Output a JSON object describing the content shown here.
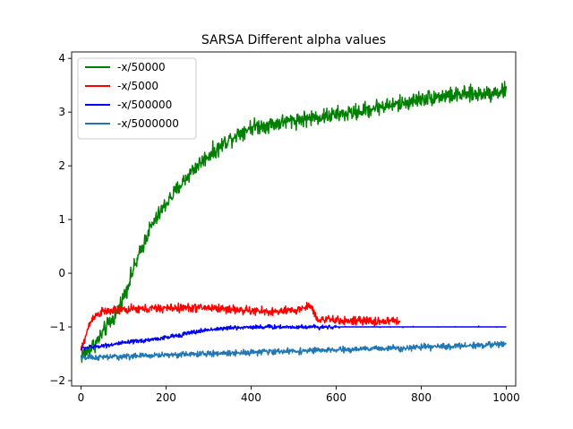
{
  "chart_data": {
    "type": "line",
    "title": "SARSA Different alpha values",
    "xlabel": "",
    "ylabel": "",
    "xlim": [
      -22,
      1022
    ],
    "ylim": [
      -2.1,
      4.12
    ],
    "xticks": [
      0,
      200,
      400,
      600,
      800,
      1000
    ],
    "yticks": [
      -2,
      -1,
      0,
      1,
      2,
      3,
      4
    ],
    "grid": false,
    "legend_position": "top-left",
    "series": [
      {
        "name": "-x/50000",
        "color": "#008000",
        "x_range": [
          0,
          1000
        ],
        "keypoints": [
          [
            0,
            -1.55
          ],
          [
            20,
            -1.42
          ],
          [
            40,
            -1.25
          ],
          [
            60,
            -1.0
          ],
          [
            80,
            -0.8
          ],
          [
            100,
            -0.45
          ],
          [
            120,
            0.0
          ],
          [
            140,
            0.4
          ],
          [
            160,
            0.8
          ],
          [
            180,
            1.05
          ],
          [
            200,
            1.3
          ],
          [
            220,
            1.5
          ],
          [
            240,
            1.7
          ],
          [
            260,
            1.9
          ],
          [
            280,
            2.05
          ],
          [
            300,
            2.2
          ],
          [
            320,
            2.3
          ],
          [
            340,
            2.45
          ],
          [
            360,
            2.55
          ],
          [
            380,
            2.65
          ],
          [
            400,
            2.72
          ],
          [
            450,
            2.78
          ],
          [
            500,
            2.85
          ],
          [
            550,
            2.9
          ],
          [
            600,
            2.95
          ],
          [
            650,
            3.0
          ],
          [
            700,
            3.1
          ],
          [
            750,
            3.15
          ],
          [
            800,
            3.25
          ],
          [
            850,
            3.3
          ],
          [
            900,
            3.32
          ],
          [
            950,
            3.35
          ],
          [
            1000,
            3.4
          ]
        ],
        "noise": 0.22
      },
      {
        "name": "-x/5000",
        "color": "#ff0000",
        "x_range": [
          0,
          750
        ],
        "keypoints": [
          [
            0,
            -1.45
          ],
          [
            10,
            -1.2
          ],
          [
            20,
            -0.95
          ],
          [
            30,
            -0.8
          ],
          [
            50,
            -0.72
          ],
          [
            100,
            -0.68
          ],
          [
            200,
            -0.65
          ],
          [
            300,
            -0.64
          ],
          [
            400,
            -0.7
          ],
          [
            450,
            -0.72
          ],
          [
            500,
            -0.7
          ],
          [
            540,
            -0.6
          ],
          [
            555,
            -0.85
          ],
          [
            600,
            -0.88
          ],
          [
            700,
            -0.9
          ],
          [
            750,
            -0.88
          ]
        ],
        "noise": 0.12
      },
      {
        "name": "-x/500000",
        "color": "#0000ff",
        "x_range": [
          0,
          1000
        ],
        "keypoints": [
          [
            0,
            -1.4
          ],
          [
            50,
            -1.35
          ],
          [
            100,
            -1.3
          ],
          [
            150,
            -1.25
          ],
          [
            200,
            -1.2
          ],
          [
            250,
            -1.12
          ],
          [
            300,
            -1.05
          ],
          [
            350,
            -1.02
          ],
          [
            400,
            -1.0
          ],
          [
            500,
            -1.0
          ],
          [
            600,
            -1.0
          ],
          [
            1000,
            -1.0
          ]
        ],
        "noise": 0.06,
        "flat_after": 600
      },
      {
        "name": "-x/5000000",
        "color": "#1f77b4",
        "x_range": [
          0,
          1000
        ],
        "keypoints": [
          [
            0,
            -1.58
          ],
          [
            100,
            -1.55
          ],
          [
            200,
            -1.52
          ],
          [
            300,
            -1.5
          ],
          [
            400,
            -1.47
          ],
          [
            500,
            -1.45
          ],
          [
            600,
            -1.43
          ],
          [
            700,
            -1.4
          ],
          [
            800,
            -1.38
          ],
          [
            900,
            -1.35
          ],
          [
            1000,
            -1.32
          ]
        ],
        "noise": 0.08
      }
    ]
  }
}
